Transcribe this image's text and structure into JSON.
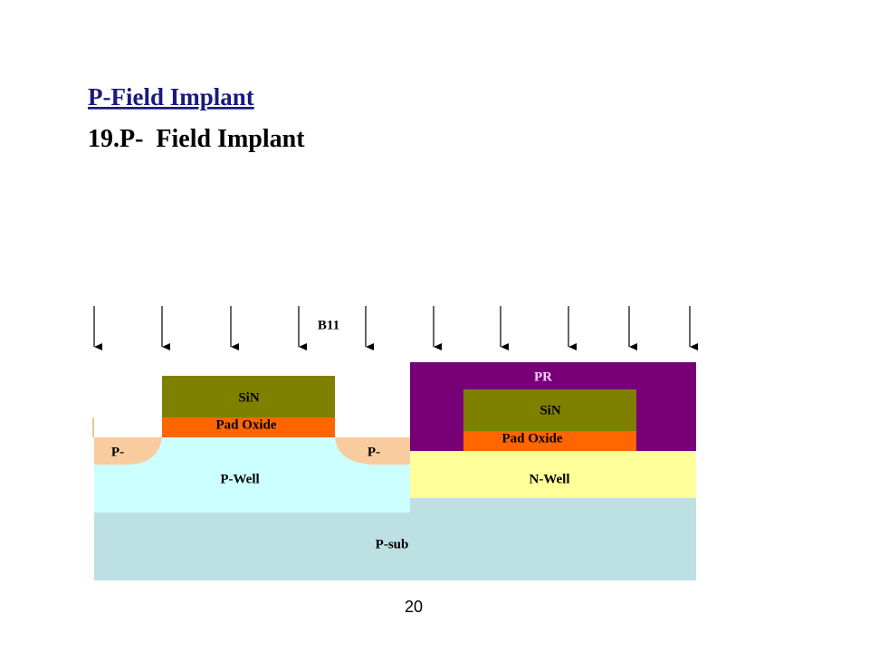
{
  "header": {
    "title": "P-Field Implant",
    "subtitle": "19.P-  Field Implant"
  },
  "diagram": {
    "implant_label": "B11",
    "regions": {
      "sin_left": "SiN",
      "pad_oxide_left": "Pad Oxide",
      "p_minus_left": "P-",
      "p_well": "P-Well",
      "p_minus_middle": "P-",
      "pr": "PR",
      "sin_right": "SiN",
      "pad_oxide_right": "Pad Oxide",
      "n_well": "N-Well",
      "p_sub": "P-sub"
    }
  },
  "page_number": "20"
}
